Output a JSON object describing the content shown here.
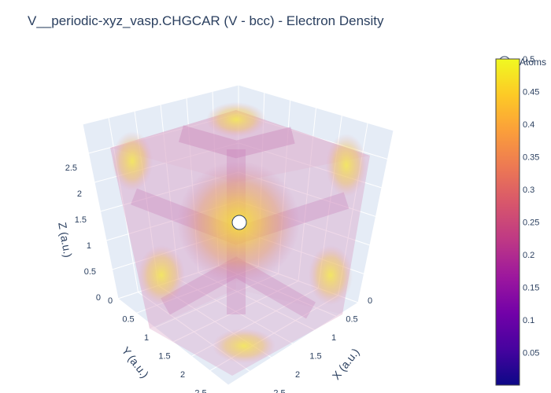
{
  "title": "V__periodic-xyz_vasp.CHGCAR (V - bcc) - Electron Density",
  "legend": {
    "label": "Atoms"
  },
  "chart_data": {
    "type": "isosurface-3d",
    "title": "V__periodic-xyz_vasp.CHGCAR (V - bcc) - Electron Density",
    "axes": {
      "x": {
        "label": "X (a.u.)",
        "range": [
          0,
          2.87
        ],
        "ticks": [
          "0",
          "0.5",
          "1",
          "1.5",
          "2",
          "2.5"
        ]
      },
      "y": {
        "label": "Y (a.u.)",
        "range": [
          0,
          2.87
        ],
        "ticks": [
          "0",
          "0.5",
          "1",
          "1.5",
          "2",
          "2.5"
        ]
      },
      "z": {
        "label": "Z (a.u.)",
        "range": [
          0,
          2.87
        ],
        "ticks": [
          "0",
          "0.5",
          "1",
          "1.5",
          "2",
          "2.5"
        ]
      }
    },
    "colorbar": {
      "colorscale": "plasma",
      "range": [
        0,
        0.5
      ],
      "ticks": [
        "0.05",
        "0.1",
        "0.15",
        "0.2",
        "0.25",
        "0.3",
        "0.35",
        "0.4",
        "0.45",
        "0.5"
      ]
    },
    "atoms": [
      {
        "name": "Atoms",
        "element": "V",
        "x": 1.435,
        "y": 1.435,
        "z": 1.435
      }
    ],
    "grid": true,
    "legend_position": "top-right"
  },
  "colors": {
    "scene_bg": "#e5ecf6",
    "grid": "#ffffff",
    "text": "#2a3f5f",
    "iso_pink": "#cc79b0",
    "iso_yellow": "#f6e23a",
    "iso_orange": "#f3a04a"
  }
}
